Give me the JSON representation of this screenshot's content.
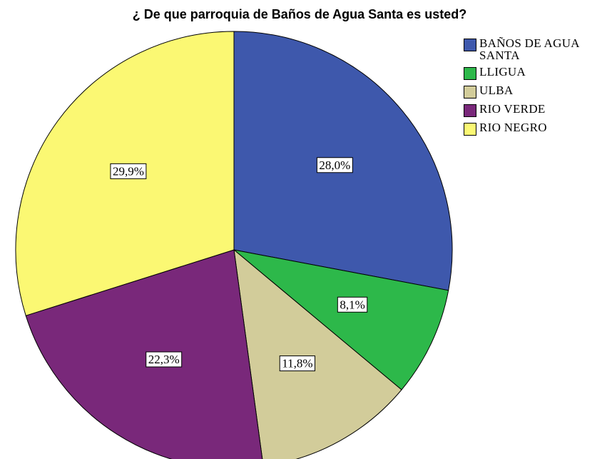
{
  "chart_data": {
    "type": "pie",
    "title": "¿ De que parroquia de Baños de Agua Santa es usted?",
    "categories": [
      "BAÑOS DE AGUA SANTA",
      "LLIGUA",
      "ULBA",
      "RIO VERDE",
      "RIO NEGRO"
    ],
    "values": [
      28.0,
      8.1,
      11.8,
      22.3,
      29.9
    ],
    "value_labels": [
      "28,0%",
      "8,1%",
      "11,8%",
      "22,3%",
      "29,9%"
    ],
    "colors": [
      "#3e58ac",
      "#2db84a",
      "#d2cc9a",
      "#79287a",
      "#fbf873"
    ],
    "legend": "right"
  }
}
